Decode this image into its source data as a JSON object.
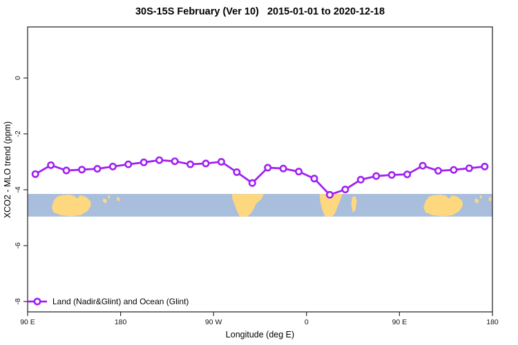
{
  "chart_data": {
    "type": "line",
    "title": "30S-15S February (Ver 10)   2015-01-01 to 2020-12-18",
    "xlabel": "Longitude (deg E)",
    "ylabel": "XCO2 - MLO trend (ppm)",
    "grid": false,
    "x_axis": {
      "range_display_deg": [
        90,
        540
      ],
      "ticks": [
        {
          "deg": 90,
          "label": "90 E"
        },
        {
          "deg": 180,
          "label": "180"
        },
        {
          "deg": 270,
          "label": "90 W"
        },
        {
          "deg": 360,
          "label": "0"
        },
        {
          "deg": 450,
          "label": "90 E"
        },
        {
          "deg": 540,
          "label": "180"
        }
      ]
    },
    "y_axis": {
      "range_ppm": [
        1.85,
        -8.35
      ],
      "ticks": [
        {
          "value": 0,
          "label": "0"
        },
        {
          "value": -2,
          "label": "-2"
        },
        {
          "value": -4,
          "label": "-4"
        },
        {
          "value": -6,
          "label": "-6"
        },
        {
          "value": -8,
          "label": "-8"
        }
      ]
    },
    "legend": {
      "position": "bottom-left-inside",
      "label": "Land (Nadir&Glint) and Ocean (Glint)"
    },
    "series": [
      {
        "name": "Land (Nadir&Glint) and Ocean (Glint)",
        "color": "#A020F0",
        "marker": "open-circle",
        "x_deg": [
          97.5,
          112.5,
          127.5,
          142.5,
          157.5,
          172.5,
          187.5,
          202.5,
          217.5,
          232.5,
          247.5,
          262.5,
          277.5,
          292.5,
          307.5,
          322.5,
          337.5,
          352.5,
          367.5,
          382.5,
          397.5,
          412.5,
          427.5,
          442.5,
          457.5,
          472.5,
          487.5,
          502.5,
          517.5,
          532.5
        ],
        "y_ppm": [
          -3.44,
          -3.12,
          -3.31,
          -3.28,
          -3.25,
          -3.17,
          -3.09,
          -3.02,
          -2.94,
          -2.98,
          -3.09,
          -3.06,
          -3.0,
          -3.37,
          -3.76,
          -3.21,
          -3.24,
          -3.35,
          -3.6,
          -4.18,
          -3.99,
          -3.64,
          -3.51,
          -3.47,
          -3.45,
          -3.14,
          -3.32,
          -3.29,
          -3.23,
          -3.17
        ]
      }
    ],
    "map_band": {
      "description": "World map strip of latitude band 30S-15S, ocean blue with land in tan, repeated across wrapped longitudes",
      "value_top_ppm": -4.15,
      "value_bottom_ppm": -4.96,
      "ocean_color": "#A8BEDC",
      "land_color": "#FDD87E",
      "land_polygons": [
        {
          "name": "australia",
          "points": [
            [
              113.3,
              0.61
            ],
            [
              115.3,
              0.3
            ],
            [
              118.7,
              0.12
            ],
            [
              123.3,
              0.05
            ],
            [
              130.0,
              0.03
            ],
            [
              135.3,
              0.09
            ],
            [
              138.0,
              0.21
            ],
            [
              140.7,
              0.06
            ],
            [
              146.0,
              0.12
            ],
            [
              150.7,
              0.3
            ],
            [
              151.3,
              0.52
            ],
            [
              148.0,
              0.76
            ],
            [
              141.3,
              0.94
            ],
            [
              132.0,
              0.99
            ],
            [
              122.0,
              0.94
            ],
            [
              115.3,
              0.82
            ]
          ]
        },
        {
          "name": "south-america",
          "points": [
            [
              288.0,
              0.0
            ],
            [
              318.7,
              0.0
            ],
            [
              316.7,
              0.21
            ],
            [
              311.3,
              0.42
            ],
            [
              308.7,
              0.67
            ],
            [
              306.0,
              0.88
            ],
            [
              302.0,
              1.0
            ],
            [
              295.3,
              1.0
            ],
            [
              292.7,
              0.76
            ],
            [
              290.0,
              0.42
            ],
            [
              288.0,
              0.18
            ]
          ]
        },
        {
          "name": "southern-africa",
          "points": [
            [
              372.7,
              0.0
            ],
            [
              394.7,
              0.0
            ],
            [
              392.7,
              0.27
            ],
            [
              390.0,
              0.58
            ],
            [
              387.3,
              0.88
            ],
            [
              384.7,
              1.0
            ],
            [
              378.0,
              1.0
            ],
            [
              375.3,
              0.73
            ],
            [
              373.3,
              0.36
            ]
          ]
        },
        {
          "name": "madagascar",
          "points": [
            [
              404.0,
              0.15
            ],
            [
              407.3,
              0.09
            ],
            [
              408.7,
              0.33
            ],
            [
              407.3,
              0.73
            ],
            [
              404.7,
              0.82
            ],
            [
              403.3,
              0.45
            ]
          ]
        },
        {
          "name": "new-caledonia",
          "points": [
            [
              163.3,
              0.18
            ],
            [
              166.8,
              0.27
            ],
            [
              165.8,
              0.43
            ],
            [
              162.8,
              0.33
            ]
          ]
        },
        {
          "name": "vanuatu",
          "points": [
            [
              168.3,
              0.04
            ],
            [
              169.9,
              0.11
            ],
            [
              169.0,
              0.23
            ],
            [
              167.6,
              0.15
            ]
          ]
        },
        {
          "name": "fiji",
          "points": [
            [
              176.8,
              0.13
            ],
            [
              179.2,
              0.19
            ],
            [
              178.5,
              0.34
            ],
            [
              176.3,
              0.27
            ]
          ]
        }
      ]
    },
    "colors": {
      "series": "#A020F0",
      "axis": "#2b2b2b",
      "text": "#000000",
      "background": "#ffffff"
    }
  }
}
